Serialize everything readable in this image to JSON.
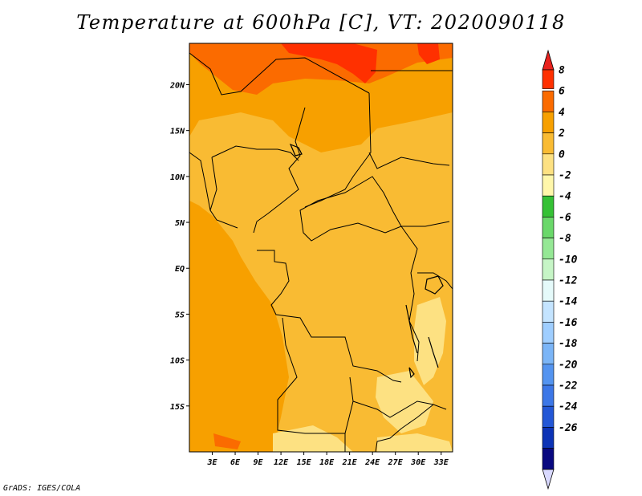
{
  "title": "Temperature at 600hPa [C], VT: 2020090118",
  "credit": "GrADS: IGES/COLA",
  "map": {
    "variable": "Temperature",
    "level": "600hPa",
    "units": "C",
    "valid_time": "2020090118",
    "lon_range": [
      0,
      34.5
    ],
    "lat_range": [
      -20,
      24.5
    ],
    "lon_ticks": [
      {
        "value": 3,
        "label": "3E"
      },
      {
        "value": 6,
        "label": "6E"
      },
      {
        "value": 9,
        "label": "9E"
      },
      {
        "value": 12,
        "label": "12E"
      },
      {
        "value": 15,
        "label": "15E"
      },
      {
        "value": 18,
        "label": "18E"
      },
      {
        "value": 21,
        "label": "21E"
      },
      {
        "value": 24,
        "label": "24E"
      },
      {
        "value": 27,
        "label": "27E"
      },
      {
        "value": 30,
        "label": "30E"
      },
      {
        "value": 33,
        "label": "33E"
      }
    ],
    "lat_ticks": [
      {
        "value": 20,
        "label": "20N"
      },
      {
        "value": 15,
        "label": "15N"
      },
      {
        "value": 10,
        "label": "10N"
      },
      {
        "value": 5,
        "label": "5N"
      },
      {
        "value": 0,
        "label": "EQ"
      },
      {
        "value": -5,
        "label": "5S"
      },
      {
        "value": -10,
        "label": "10S"
      },
      {
        "value": -15,
        "label": "15S"
      }
    ],
    "background_color": "#f7a000"
  },
  "colorbar": {
    "labels": [
      "8",
      "6",
      "4",
      "2",
      "0",
      "-2",
      "-4",
      "-6",
      "-8",
      "-10",
      "-12",
      "-14",
      "-16",
      "-18",
      "-20",
      "-22",
      "-24",
      "-26"
    ],
    "colors": [
      "#ff3000",
      "#fb6b00",
      "#f7a000",
      "#f9bb33",
      "#fde182",
      "#fff7aa",
      "#35c135",
      "#6ad86a",
      "#95e895",
      "#c6f5c6",
      "#e5fafa",
      "#c4e4ff",
      "#9fceff",
      "#7bb5f7",
      "#5494f0",
      "#3c77e7",
      "#2357d6",
      "#0c33b6",
      "#080880"
    ],
    "top_arrow_color": "#e8221e",
    "bottom_arrow_color": "#d9d9ff"
  }
}
